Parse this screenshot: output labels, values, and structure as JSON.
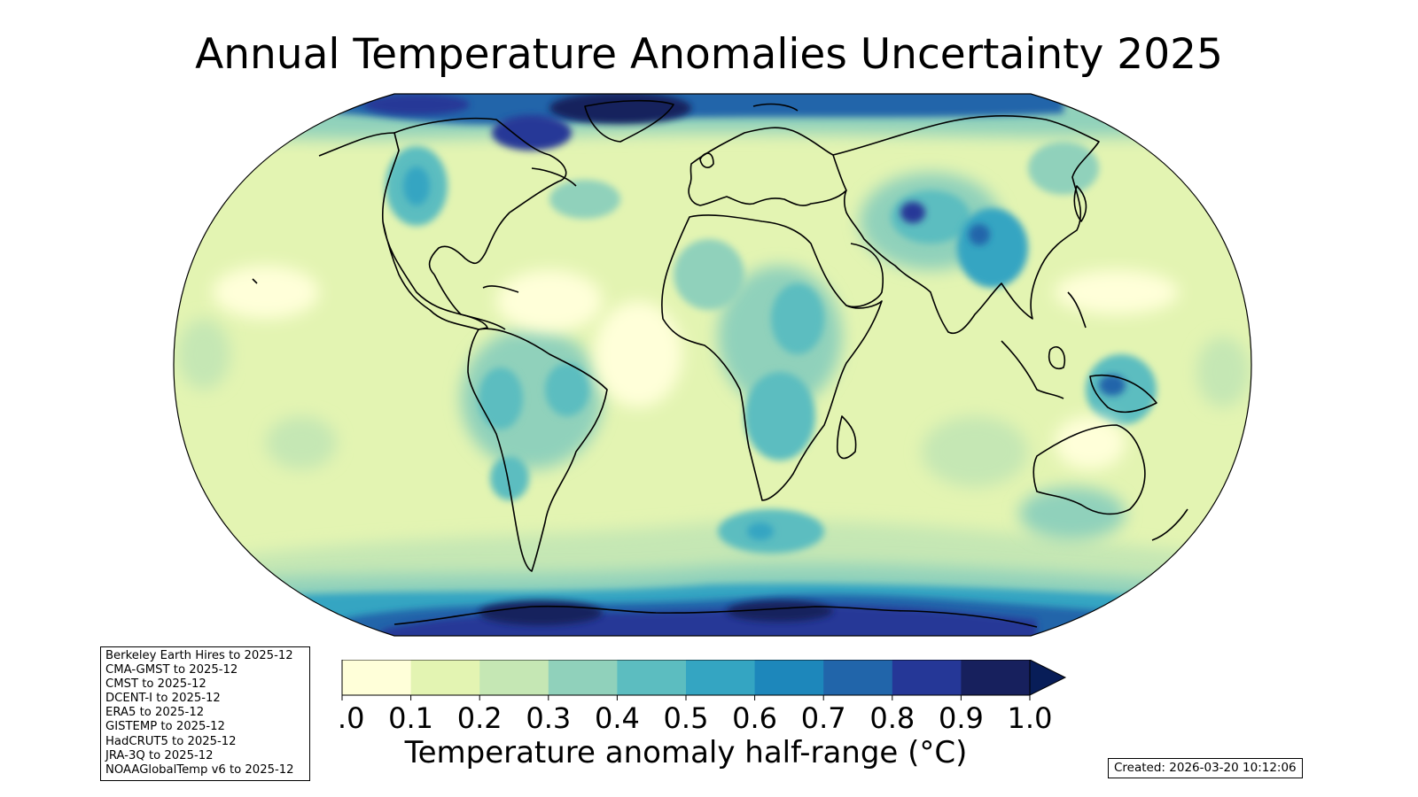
{
  "title": "Annual Temperature Anomalies Uncertainty 2025",
  "sources": [
    "Berkeley Earth Hires to 2025-12",
    "CMA-GMST to 2025-12",
    "CMST to 2025-12",
    "DCENT-I to 2025-12",
    "ERA5 to 2025-12",
    "GISTEMP to 2025-12",
    "HadCRUT5 to 2025-12",
    "JRA-3Q to 2025-12",
    "NOAAGlobalTemp v6 to 2025-12"
  ],
  "colorbar": {
    "label": "Temperature anomaly half-range (°C)",
    "ticks": [
      "0.0",
      "0.1",
      "0.2",
      "0.3",
      "0.4",
      "0.5",
      "0.6",
      "0.7",
      "0.8",
      "0.9",
      "1.0"
    ],
    "colors": [
      "#ffffd9",
      "#e3f4b2",
      "#c5e7b4",
      "#90d1bb",
      "#5cbdc0",
      "#34a5c2",
      "#1d87bb",
      "#2165aa",
      "#253797",
      "#17205d"
    ],
    "extend_color": "#081d58"
  },
  "map": {
    "projection": "Robinson",
    "ocean_base_level": 0.1,
    "regions": [
      {
        "name": "Antarctic band",
        "level": 0.9
      },
      {
        "name": "Southern Ocean",
        "level": 0.4
      },
      {
        "name": "Arctic band",
        "level": 0.9
      },
      {
        "name": "Greenland / Canadian Arctic",
        "level": 0.9
      },
      {
        "name": "North America west",
        "level": 0.5
      },
      {
        "name": "Central Asia (Tibet)",
        "level": 0.9
      },
      {
        "name": "China",
        "level": 0.6
      },
      {
        "name": "Siberia",
        "level": 0.4
      },
      {
        "name": "East Africa",
        "level": 0.6
      },
      {
        "name": "Sahara",
        "level": 0.3
      },
      {
        "name": "South America",
        "level": 0.5
      },
      {
        "name": "New Guinea",
        "level": 0.6
      },
      {
        "name": "Australia",
        "level": 0.3
      },
      {
        "name": "South Atlantic",
        "level": 0.6
      },
      {
        "name": "Tropical Atlantic",
        "level": 0.0
      }
    ]
  },
  "created": "Created: 2026-03-20 10:12:06"
}
